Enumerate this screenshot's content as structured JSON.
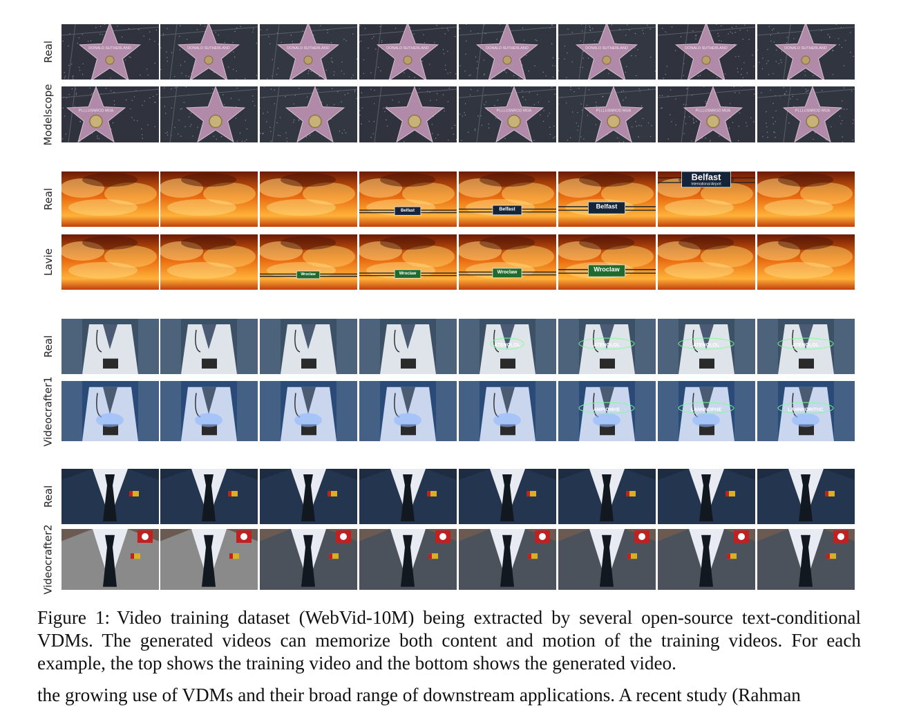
{
  "figure": {
    "examples": [
      {
        "theme": "walk-of-fame-star",
        "rows": [
          {
            "label": "Real",
            "frames": 8,
            "overlay_text": [
              "DONALD SUTHERLAND",
              "DONALD SUTHERLAND",
              "DONALD SUTHERLAND",
              "DONALD SUTHERLAND",
              "DONALD SUTHERLAND",
              "DONALD SUTHERLAND",
              "DONALD SUTHERLAND",
              "DONALD SUTHERLAND"
            ]
          },
          {
            "label": "Modelscope",
            "frames": 8,
            "overlay_text": [
              "PLLLUSNROD MUA",
              "",
              "",
              "",
              "PLLLUSNROD MUA",
              "PLLLUSNROD MUA",
              "PLLLUSNROD MUA",
              "PLLLUSNROD MUA"
            ]
          }
        ]
      },
      {
        "theme": "fire-sky-airport-sign",
        "rows": [
          {
            "label": "Real",
            "frames": 8,
            "overlay_text": [
              "",
              "",
              "",
              "Belfast",
              "Belfast",
              "Belfast",
              "Belfast",
              ""
            ],
            "sign_sub": "International Airport"
          },
          {
            "label": "Lavie",
            "frames": 8,
            "overlay_text": [
              "",
              "",
              "Wroclaw",
              "Wroclaw",
              "Wroclaw",
              "Wroclaw",
              "",
              ""
            ]
          }
        ]
      },
      {
        "theme": "doctor-hologram",
        "rows": [
          {
            "label": "Real",
            "frames": 8,
            "overlay_text": [
              "",
              "",
              "",
              "",
              "ATENOLOL",
              "ATENOLOL",
              "ATENOLOL",
              "ATENOLOL"
            ]
          },
          {
            "label": "Videocrafter1",
            "frames": 8,
            "overlay_text": [
              "",
              "",
              "",
              "",
              "",
              "AMPIOMHE",
              "LANNNOPHE",
              "LANNNORITHC"
            ]
          }
        ]
      },
      {
        "theme": "suit-flag-pin",
        "rows": [
          {
            "label": "Real",
            "frames": 8
          },
          {
            "label": "Videocrafter2",
            "frames": 8
          }
        ]
      }
    ]
  },
  "caption": {
    "label": "Figure 1:",
    "text": "Video training dataset (WebVid-10M) being extracted by several open-source text-conditional VDMs. The generated videos can memorize both content and motion of the training videos. For each example, the top shows the training video and the bottom shows the generated video."
  },
  "body_text": {
    "cutoff_line": "the growing use of VDMs and their broad range of downstream applications. A recent study (Rahman"
  }
}
